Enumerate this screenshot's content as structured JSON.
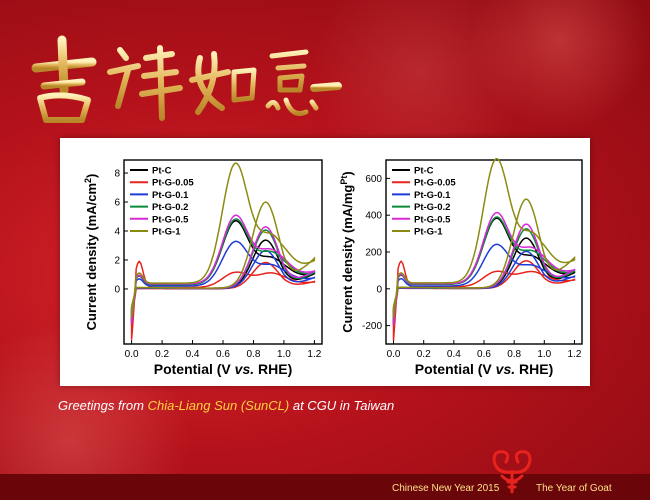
{
  "colors": {
    "series": [
      "#000000",
      "#e8231d",
      "#1f3cd8",
      "#0b8a3a",
      "#d62ad6",
      "#8b8b12"
    ],
    "background": "#b5121b",
    "gold": "#e7c16a"
  },
  "banner": {
    "calligraphy": "吉祥如意",
    "calligraphy_icon": "gold-calligraphy-icon"
  },
  "greeting": {
    "prefix": "Greetings from ",
    "name": "Chia-Liang Sun (SunCL)",
    "suffix": " at CGU in Taiwan"
  },
  "footer": {
    "left": "Chinese New Year 2015",
    "right": "The Year of Goat",
    "goat_icon": "goat-knot-icon"
  },
  "chart_data": [
    {
      "type": "line",
      "xlabel_parts": [
        "Potential (V ",
        "vs.",
        " RHE)"
      ],
      "ylabel_parts": [
        "Current density (mA/cm",
        "2",
        ")"
      ],
      "xlim": [
        -0.05,
        1.25
      ],
      "ylim": [
        -3.8,
        8.9
      ],
      "xticks": [
        0.0,
        0.2,
        0.4,
        0.6,
        0.8,
        1.0,
        1.2
      ],
      "xtick_labels": [
        "0.0",
        "0.2",
        "0.4",
        "0.6",
        "0.8",
        "1.0",
        "1.2"
      ],
      "yticks": [
        0,
        2,
        4,
        6,
        8
      ],
      "ytick_labels": [
        "0",
        "2",
        "4",
        "6",
        "8"
      ],
      "legend": [
        "Pt-C",
        "Pt-G-0.05",
        "Pt-G-0.1",
        "Pt-G-0.2",
        "Pt-G-0.5",
        "Pt-G-1"
      ],
      "series": [
        {
          "name": "Pt-C",
          "A": 4.3,
          "B": 3.3,
          "R": 1.2,
          "s": 0.3,
          "H": 0.6,
          "low": -2.5
        },
        {
          "name": "Pt-G-0.05",
          "A": 1.0,
          "B": 1.8,
          "R": 0.6,
          "s": 0.1,
          "H": 1.8,
          "low": -3.5
        },
        {
          "name": "Pt-G-0.1",
          "A": 3.0,
          "B": 2.6,
          "R": 0.9,
          "s": 0.2,
          "H": 0.5,
          "low": -2.2
        },
        {
          "name": "Pt-G-0.2",
          "A": 4.4,
          "B": 4.0,
          "R": 1.3,
          "s": 0.3,
          "H": 0.6,
          "low": -2.3
        },
        {
          "name": "Pt-G-0.5",
          "A": 4.6,
          "B": 4.2,
          "R": 1.4,
          "s": 0.35,
          "H": 0.6,
          "low": -2.4
        },
        {
          "name": "Pt-G-1",
          "A": 8.1,
          "B": 5.9,
          "R": 2.5,
          "s": 0.4,
          "H": 0.7,
          "low": -2.0
        }
      ]
    },
    {
      "type": "line",
      "xlabel_parts": [
        "Potential (V ",
        "vs.",
        " RHE)"
      ],
      "ylabel_parts": [
        "Current density (mA/mg",
        "Pt",
        ")"
      ],
      "xlim": [
        -0.05,
        1.25
      ],
      "ylim": [
        -300,
        700
      ],
      "xticks": [
        0.0,
        0.2,
        0.4,
        0.6,
        0.8,
        1.0,
        1.2
      ],
      "xtick_labels": [
        "0.0",
        "0.2",
        "0.4",
        "0.6",
        "0.8",
        "1.0",
        "1.2"
      ],
      "yticks": [
        -200,
        0,
        200,
        400,
        600
      ],
      "ytick_labels": [
        "-200",
        "0",
        "200",
        "400",
        "600"
      ],
      "legend": [
        "Pt-C",
        "Pt-G-0.05",
        "Pt-G-0.1",
        "Pt-G-0.2",
        "Pt-G-0.5",
        "Pt-G-1"
      ],
      "series": [
        {
          "name": "Pt-C",
          "A": 350,
          "B": 270,
          "R": 100,
          "s": 25,
          "H": 50,
          "low": -200
        },
        {
          "name": "Pt-G-0.05",
          "A": 80,
          "B": 150,
          "R": 60,
          "s": 10,
          "H": 140,
          "low": -280
        },
        {
          "name": "Pt-G-0.1",
          "A": 220,
          "B": 200,
          "R": 80,
          "s": 15,
          "H": 40,
          "low": -180
        },
        {
          "name": "Pt-G-0.2",
          "A": 355,
          "B": 320,
          "R": 110,
          "s": 25,
          "H": 50,
          "low": -190
        },
        {
          "name": "Pt-G-0.5",
          "A": 375,
          "B": 345,
          "R": 120,
          "s": 28,
          "H": 50,
          "low": -200
        },
        {
          "name": "Pt-G-1",
          "A": 660,
          "B": 480,
          "R": 200,
          "s": 32,
          "H": 55,
          "low": -160
        }
      ]
    }
  ]
}
